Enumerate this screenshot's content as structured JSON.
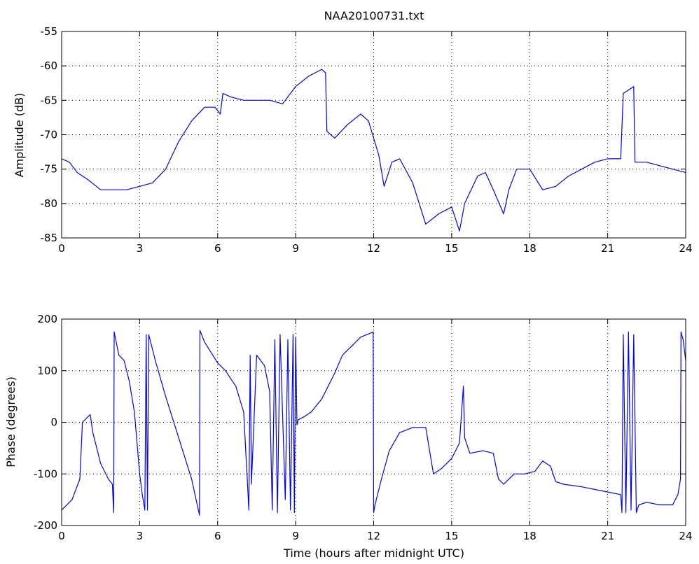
{
  "chart_data": [
    {
      "type": "line",
      "title": "NAA20100731.txt",
      "xlabel": "",
      "ylabel": "Amplitude (dB)",
      "xlim": [
        0,
        24
      ],
      "ylim": [
        -85,
        -55
      ],
      "xticks": [
        0,
        3,
        6,
        9,
        12,
        15,
        18,
        21,
        24
      ],
      "yticks": [
        -85,
        -80,
        -75,
        -70,
        -65,
        -60,
        -55
      ],
      "grid": true,
      "color": "#0000ff",
      "series": [
        {
          "x": [
            0,
            0.3,
            0.6,
            1.0,
            1.5,
            2.0,
            2.5,
            3.0,
            3.5,
            4.0,
            4.5,
            5.0,
            5.5,
            5.9,
            6.1,
            6.2,
            6.5,
            7.0,
            7.5,
            8.0,
            8.5,
            9.0,
            9.5,
            10.0,
            10.15,
            10.2,
            10.5,
            11.0,
            11.5,
            11.8,
            12.0,
            12.2,
            12.4,
            12.7,
            13.0,
            13.5,
            14.0,
            14.5,
            15.0,
            15.3,
            15.5,
            16.0,
            16.3,
            16.6,
            17.0,
            17.2,
            17.5,
            18.0,
            18.5,
            19.0,
            19.5,
            20.0,
            20.5,
            21.0,
            21.5,
            21.6,
            22.0,
            22.05,
            22.1,
            22.5,
            23.0,
            23.5,
            24.0
          ],
          "y": [
            -73.5,
            -74,
            -75.5,
            -76.5,
            -78,
            -78,
            -78,
            -77.5,
            -77,
            -75,
            -71,
            -68,
            -66,
            -66,
            -67,
            -64,
            -64.5,
            -65,
            -65,
            -65,
            -65.5,
            -63,
            -61.5,
            -60.5,
            -61,
            -69.5,
            -70.5,
            -68.5,
            -67,
            -68,
            -70.5,
            -73,
            -77.5,
            -74,
            -73.5,
            -77,
            -83,
            -81.5,
            -80.5,
            -84,
            -80,
            -76,
            -75.5,
            -78,
            -81.5,
            -78,
            -75,
            -75,
            -78,
            -77.5,
            -76,
            -75,
            -74,
            -73.5,
            -73.5,
            -64,
            -63,
            -74,
            -74,
            -74,
            -74.5,
            -75,
            -75.5
          ]
        }
      ]
    },
    {
      "type": "line",
      "title": "",
      "xlabel": "Time (hours after midnight UTC)",
      "ylabel": "Phase (degrees)",
      "xlim": [
        0,
        24
      ],
      "ylim": [
        -200,
        200
      ],
      "xticks": [
        0,
        3,
        6,
        9,
        12,
        15,
        18,
        21,
        24
      ],
      "yticks": [
        -200,
        -100,
        0,
        100,
        200
      ],
      "grid": true,
      "color": "#0000ff",
      "series": [
        {
          "x": [
            0,
            0.4,
            0.7,
            0.8,
            1.0,
            1.1,
            1.2,
            1.5,
            1.8,
            1.95,
            2.0,
            2.02,
            2.2,
            2.4,
            2.6,
            2.8,
            3.0,
            3.1,
            3.2,
            3.25,
            3.3,
            3.35,
            3.6,
            4.0,
            4.5,
            5.0,
            5.3,
            5.32,
            5.5,
            6.0,
            6.3,
            6.7,
            7.0,
            7.15,
            7.2,
            7.25,
            7.3,
            7.5,
            7.8,
            8.0,
            8.1,
            8.2,
            8.3,
            8.4,
            8.6,
            8.7,
            8.8,
            8.9,
            8.95,
            9.0,
            9.05,
            9.1,
            9.3,
            9.6,
            10.0,
            10.5,
            10.8,
            11.2,
            11.5,
            11.98,
            12.0,
            12.05,
            12.3,
            12.6,
            13.0,
            13.5,
            14.0,
            14.1,
            14.3,
            14.6,
            15.0,
            15.3,
            15.45,
            15.5,
            15.7,
            16.2,
            16.6,
            16.8,
            17.0,
            17.4,
            17.8,
            18.2,
            18.5,
            18.8,
            19.0,
            19.3,
            20.0,
            21.0,
            21.5,
            21.55,
            21.6,
            21.7,
            21.8,
            21.9,
            22.0,
            22.1,
            22.2,
            22.5,
            23.0,
            23.5,
            23.7,
            23.8,
            23.82,
            23.9,
            24.0
          ],
          "y": [
            -170,
            -150,
            -110,
            0,
            10,
            15,
            -20,
            -80,
            -110,
            -120,
            -175,
            175,
            130,
            120,
            80,
            20,
            -100,
            -140,
            -170,
            170,
            -170,
            170,
            120,
            50,
            -30,
            -110,
            -180,
            178,
            155,
            115,
            100,
            70,
            20,
            -120,
            -170,
            130,
            -120,
            130,
            110,
            60,
            -170,
            160,
            -175,
            170,
            -150,
            160,
            -170,
            170,
            -175,
            165,
            -5,
            5,
            10,
            20,
            45,
            95,
            130,
            150,
            165,
            175,
            -175,
            -160,
            -110,
            -55,
            -20,
            -10,
            -10,
            -40,
            -100,
            -90,
            -70,
            -40,
            70,
            -30,
            -60,
            -55,
            -60,
            -110,
            -120,
            -100,
            -100,
            -95,
            -75,
            -85,
            -115,
            -120,
            -125,
            -135,
            -140,
            -175,
            170,
            -175,
            175,
            -170,
            170,
            -175,
            -160,
            -155,
            -160,
            -160,
            -140,
            -110,
            175,
            160,
            120
          ]
        }
      ]
    }
  ]
}
